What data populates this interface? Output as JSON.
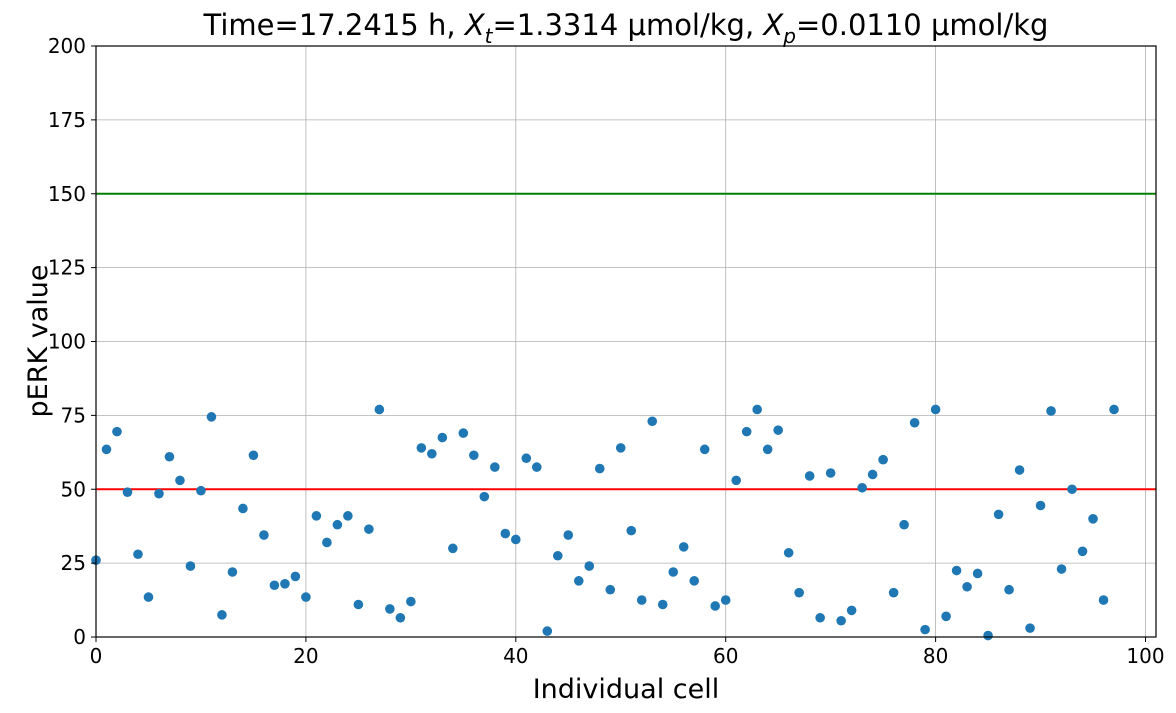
{
  "chart_data": {
    "type": "scatter",
    "title": {
      "part1": "Time=17.2415 h, ",
      "var1": "X",
      "sub1": "t",
      "part2": "=1.3314 μmol/kg, ",
      "var2": "X",
      "sub2": "p",
      "part3": "=0.0110 μmol/kg"
    },
    "xlabel": "Individual cell",
    "ylabel": "pERK value",
    "xlim": [
      0,
      101
    ],
    "ylim": [
      0,
      200
    ],
    "xticks": [
      0,
      20,
      40,
      60,
      80,
      100
    ],
    "yticks": [
      0,
      25,
      50,
      75,
      100,
      125,
      150,
      175,
      200
    ],
    "grid": true,
    "point_color": "#1f77b4",
    "hlines": [
      {
        "y": 150,
        "color": "#008000"
      },
      {
        "y": 50,
        "color": "#ff0000"
      }
    ],
    "x": [
      0,
      1,
      2,
      3,
      4,
      5,
      6,
      7,
      8,
      9,
      10,
      11,
      12,
      13,
      14,
      15,
      16,
      17,
      18,
      19,
      20,
      21,
      22,
      23,
      24,
      25,
      26,
      27,
      28,
      29,
      30,
      31,
      32,
      33,
      34,
      35,
      36,
      37,
      38,
      39,
      40,
      41,
      42,
      43,
      44,
      45,
      46,
      47,
      48,
      49,
      50,
      51,
      52,
      53,
      54,
      55,
      56,
      57,
      58,
      59,
      60,
      61,
      62,
      63,
      64,
      65,
      66,
      67,
      68,
      69,
      70,
      71,
      72,
      73,
      74,
      75,
      76,
      77,
      78,
      79,
      80,
      81,
      82,
      83,
      84,
      85,
      86,
      87,
      88,
      89,
      90,
      91,
      92,
      93,
      94,
      95,
      96,
      97
    ],
    "y": [
      26,
      63.5,
      69.5,
      49,
      28,
      13.5,
      48.5,
      61,
      53,
      24,
      49.5,
      74.5,
      7.5,
      22,
      43.5,
      61.5,
      34.5,
      17.5,
      18,
      20.5,
      13.5,
      41,
      32,
      38,
      41,
      11,
      36.5,
      77,
      9.5,
      6.5,
      12,
      64,
      62,
      67.5,
      30,
      69,
      61.5,
      47.5,
      57.5,
      35,
      33,
      60.5,
      57.5,
      2,
      27.5,
      34.5,
      19,
      24,
      57,
      16,
      64,
      36,
      12.5,
      73,
      11,
      22,
      30.5,
      19,
      63.5,
      10.5,
      12.5,
      53,
      69.5,
      77,
      63.5,
      70,
      28.5,
      15,
      54.5,
      6.5,
      55.5,
      5.5,
      9,
      50.5,
      55,
      60,
      15,
      38,
      72.5,
      2.5,
      77,
      7,
      22.5,
      17,
      21.5,
      0.5,
      41.5,
      16,
      56.5,
      3,
      44.5,
      76.5,
      23,
      50,
      29,
      40,
      12.5,
      77
    ]
  }
}
